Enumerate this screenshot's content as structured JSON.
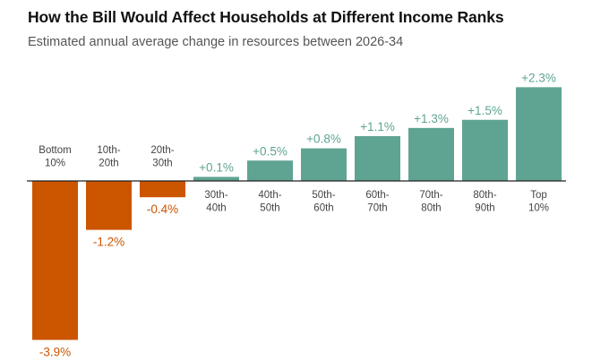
{
  "chart_data": {
    "type": "bar",
    "title": "How the Bill Would Affect Households at Different Income Ranks",
    "subtitle": "Estimated annual average change in resources between 2026-34",
    "xlabel": "",
    "ylabel": "",
    "categories": [
      [
        "Bottom",
        "10%"
      ],
      [
        "10th-",
        "20th"
      ],
      [
        "20th-",
        "30th"
      ],
      [
        "30th-",
        "40th"
      ],
      [
        "40th-",
        "50th"
      ],
      [
        "50th-",
        "60th"
      ],
      [
        "60th-",
        "70th"
      ],
      [
        "70th-",
        "80th"
      ],
      [
        "80th-",
        "90th"
      ],
      [
        "Top",
        "10%"
      ]
    ],
    "values": [
      -3.9,
      -1.2,
      -0.4,
      0.1,
      0.5,
      0.8,
      1.1,
      1.3,
      1.5,
      2.3
    ],
    "value_labels": [
      "-3.9%",
      "-1.2%",
      "-0.4%",
      "+0.1%",
      "+0.5%",
      "+0.8%",
      "+1.1%",
      "+1.3%",
      "+1.5%",
      "+2.3%"
    ],
    "ylim": [
      -3.9,
      2.3
    ],
    "grid": false,
    "colors": {
      "negative": "#cc5500",
      "positive": "#5fa393",
      "axis": "#222222"
    }
  }
}
